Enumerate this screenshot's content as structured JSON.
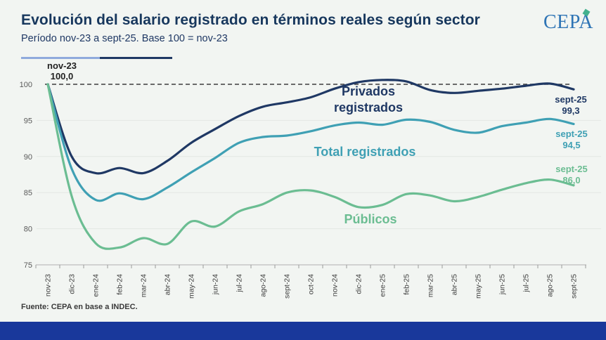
{
  "header": {
    "title": "Evolución del salario registrado en términos reales según sector",
    "subtitle": "Período nov-23 a sept-25. Base 100 = nov-23",
    "logo_text": "CEPA"
  },
  "footer": {
    "source": "Fuente: CEPA en base a INDEC."
  },
  "colors": {
    "title": "#17375d",
    "divider_light": "#8faadc",
    "divider_dark": "#1f3864",
    "footer_band": "#19389b",
    "background": "#f2f5f2",
    "dashed_baseline": "#3c3c3c",
    "gridline": "#e3e7e3",
    "axis": "#b0b0b0",
    "tick_label": "#404040",
    "y_label": "#595959"
  },
  "chart_data": {
    "type": "line",
    "title": "Evolución del salario registrado en términos reales según sector",
    "xlabel": "",
    "ylabel": "",
    "ylim": [
      75,
      100
    ],
    "yticks": [
      75,
      80,
      85,
      90,
      95,
      100
    ],
    "grid": "faint horizontal",
    "baseline": {
      "value": 100,
      "style": "dashed"
    },
    "categories": [
      "nov-23",
      "dic-23",
      "ene-24",
      "feb-24",
      "mar-24",
      "abr-24",
      "may-24",
      "jun-24",
      "jul-24",
      "ago-24",
      "sept-24",
      "oct-24",
      "nov-24",
      "dic-24",
      "ene-25",
      "feb-25",
      "mar-25",
      "abr-25",
      "may-25",
      "jun-25",
      "jul-25",
      "ago-25",
      "sept-25"
    ],
    "series": [
      {
        "name": "Privados registrados",
        "color": "#1f3864",
        "values": [
          100,
          90.0,
          87.7,
          88.4,
          87.7,
          89.4,
          91.9,
          93.8,
          95.6,
          96.9,
          97.5,
          98.2,
          99.4,
          100.3,
          100.6,
          100.4,
          99.2,
          98.8,
          99.1,
          99.4,
          99.8,
          100.1,
          99.3
        ]
      },
      {
        "name": "Total registrados",
        "color": "#3fa0b4",
        "values": [
          100,
          88.3,
          84.0,
          84.9,
          84.1,
          85.7,
          87.8,
          89.8,
          91.9,
          92.7,
          92.9,
          93.5,
          94.3,
          94.7,
          94.4,
          95.1,
          94.8,
          93.7,
          93.3,
          94.2,
          94.7,
          95.2,
          94.5
        ]
      },
      {
        "name": "Públicos",
        "color": "#6bbd92",
        "values": [
          100,
          84.5,
          78.0,
          77.4,
          78.7,
          77.9,
          81.0,
          80.3,
          82.4,
          83.4,
          85.0,
          85.3,
          84.4,
          83.0,
          83.3,
          84.8,
          84.6,
          83.8,
          84.4,
          85.4,
          86.3,
          86.8,
          86.0
        ]
      }
    ],
    "series_labels": {
      "privados": "Privados\nregistrados",
      "total": "Total registrados",
      "publicos": "Públicos"
    },
    "annotations": {
      "start": {
        "text": "nov-23\n100,0"
      },
      "end": [
        {
          "text": "sept-25\n99,3"
        },
        {
          "text": "sept-25\n94,5"
        },
        {
          "text": "sept-25\n86,0"
        }
      ]
    },
    "legend_position": "labels on chart"
  }
}
